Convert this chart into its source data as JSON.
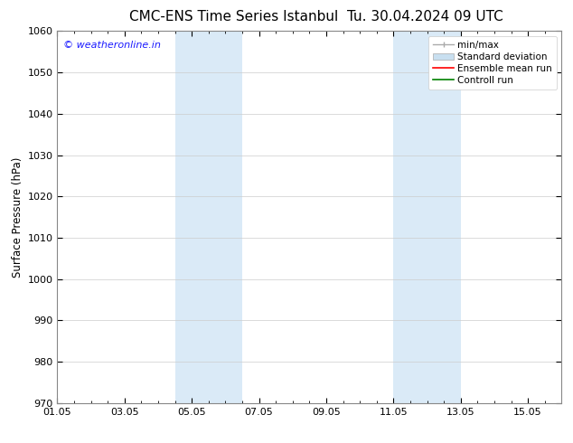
{
  "title_left": "CMC-ENS Time Series Istanbul",
  "title_right": "Tu. 30.04.2024 09 UTC",
  "ylabel": "Surface Pressure (hPa)",
  "ylim": [
    970,
    1060
  ],
  "yticks": [
    970,
    980,
    990,
    1000,
    1010,
    1020,
    1030,
    1040,
    1050,
    1060
  ],
  "xlim": [
    0,
    15
  ],
  "xtick_labels": [
    "01.05",
    "03.05",
    "05.05",
    "07.05",
    "09.05",
    "11.05",
    "13.05",
    "15.05"
  ],
  "xtick_positions": [
    0,
    2,
    4,
    6,
    8,
    10,
    12,
    14
  ],
  "shaded_bands": [
    {
      "x_start": 3.5,
      "x_end": 5.5
    },
    {
      "x_start": 10.0,
      "x_end": 12.0
    }
  ],
  "shade_color": "#daeaf7",
  "watermark": "© weatheronline.in",
  "watermark_color": "#1a1aff",
  "watermark_fontsize": 8,
  "legend_entries": [
    {
      "label": "min/max",
      "color": "#aaaaaa",
      "lw": 1.0,
      "ls": "-",
      "type": "minmax"
    },
    {
      "label": "Standard deviation",
      "color": "#c8dff0",
      "lw": 5,
      "ls": "-",
      "type": "patch"
    },
    {
      "label": "Ensemble mean run",
      "color": "red",
      "lw": 1.2,
      "ls": "-",
      "type": "line"
    },
    {
      "label": "Controll run",
      "color": "green",
      "lw": 1.2,
      "ls": "-",
      "type": "line"
    }
  ],
  "bg_color": "#ffffff",
  "grid_color": "#cccccc",
  "spine_color": "#888888",
  "title_fontsize": 11,
  "axis_label_fontsize": 8.5,
  "tick_fontsize": 8,
  "legend_fontsize": 7.5,
  "fig_width": 6.34,
  "fig_height": 4.9,
  "dpi": 100
}
